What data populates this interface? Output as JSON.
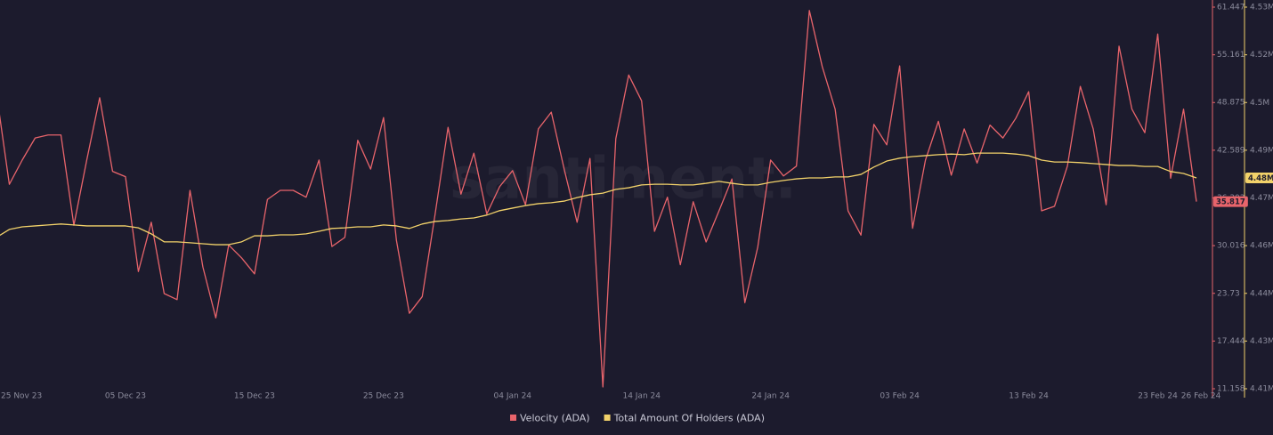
{
  "chart_data": {
    "type": "line",
    "watermark": "santiment.",
    "categories": [
      "25 Nov 23",
      null,
      null,
      null,
      null,
      null,
      null,
      null,
      null,
      null,
      "05 Dec 23",
      null,
      null,
      null,
      null,
      null,
      null,
      null,
      null,
      null,
      "15 Dec 23",
      null,
      null,
      null,
      null,
      null,
      null,
      null,
      null,
      null,
      "25 Dec 23",
      null,
      null,
      null,
      null,
      null,
      null,
      null,
      null,
      null,
      "04 Jan 24",
      null,
      null,
      null,
      null,
      null,
      null,
      null,
      null,
      null,
      "14 Jan 24",
      null,
      null,
      null,
      null,
      null,
      null,
      null,
      null,
      null,
      "24 Jan 24",
      null,
      null,
      null,
      null,
      null,
      null,
      null,
      null,
      null,
      "03 Feb 24",
      null,
      null,
      null,
      null,
      null,
      null,
      null,
      null,
      null,
      "13 Feb 24",
      null,
      null,
      null,
      null,
      null,
      null,
      null,
      null,
      null,
      "23 Feb 24",
      null,
      null,
      "26 Feb 24"
    ],
    "ylim": [
      11.158,
      61.447
    ],
    "yticks": [
      61.447,
      55.161,
      48.875,
      42.589,
      36.303,
      30.016,
      23.73,
      17.444,
      11.158
    ],
    "y2lim": [
      4410000,
      4530000
    ],
    "y2ticks": [
      {
        "value": 4530000,
        "label": "4.53M"
      },
      {
        "value": 4515000,
        "label": "4.52M"
      },
      {
        "value": 4500000,
        "label": "4.5M"
      },
      {
        "value": 4485000,
        "label": "4.49M"
      },
      {
        "value": 4470000,
        "label": "4.47M"
      },
      {
        "value": 4455000,
        "label": "4.46M"
      },
      {
        "value": 4440000,
        "label": "4.44M"
      },
      {
        "value": 4425000,
        "label": "4.43M"
      },
      {
        "value": 4410000,
        "label": "4.41M"
      }
    ],
    "grid": false,
    "legend": "bottom",
    "series": [
      {
        "name": "Velocity (ADA)",
        "color": "#e8646b",
        "axis": "y",
        "values": [
          50.1,
          38.1,
          41.3,
          44.2,
          44.6,
          44.6,
          32.7,
          41.3,
          49.5,
          39.8,
          39.1,
          26.6,
          33.1,
          23.7,
          22.9,
          37.3,
          27.2,
          20.5,
          30.1,
          28.4,
          26.3,
          36.1,
          37.3,
          37.3,
          36.4,
          41.3,
          29.9,
          31.1,
          43.9,
          40.1,
          46.9,
          30.7,
          21.1,
          23.3,
          34.2,
          45.6,
          36.8,
          42.2,
          34.2,
          37.8,
          39.9,
          35.4,
          45.4,
          47.6,
          40.1,
          33.1,
          41.5,
          11.4,
          44.1,
          52.5,
          49.1,
          31.9,
          36.4,
          27.5,
          35.8,
          30.5,
          34.6,
          38.8,
          22.5,
          29.8,
          41.3,
          39.2,
          40.5,
          61.0,
          53.6,
          48.0,
          34.6,
          31.4,
          46.0,
          43.3,
          53.7,
          32.3,
          41.3,
          46.4,
          39.3,
          45.4,
          40.9,
          45.9,
          44.2,
          46.8,
          50.3,
          34.6,
          35.2,
          40.5,
          51.0,
          45.4,
          35.4,
          56.3,
          48.0,
          44.9,
          57.9,
          38.9,
          48.0,
          35.817
        ]
      },
      {
        "name": "Total Amount Of Holders (ADA)",
        "color": "#f2d26a",
        "axis": "y2",
        "values": [
          4457600,
          4460100,
          4460900,
          4461200,
          4461500,
          4461800,
          4461500,
          4461200,
          4461200,
          4461200,
          4461200,
          4460600,
          4458700,
          4456200,
          4456200,
          4455900,
          4455600,
          4455300,
          4455300,
          4456200,
          4458100,
          4458100,
          4458400,
          4458400,
          4458700,
          4459500,
          4460400,
          4460600,
          4460900,
          4460900,
          4461500,
          4461200,
          4460400,
          4461800,
          4462600,
          4462900,
          4463400,
          4463700,
          4464600,
          4466000,
          4466800,
          4467600,
          4468200,
          4468500,
          4469000,
          4470100,
          4471000,
          4471500,
          4472700,
          4473200,
          4474100,
          4474300,
          4474300,
          4474100,
          4474100,
          4474600,
          4475200,
          4474600,
          4474100,
          4474100,
          4474900,
          4475500,
          4476000,
          4476300,
          4476300,
          4476600,
          4476600,
          4477400,
          4479700,
          4481600,
          4482500,
          4483000,
          4483300,
          4483600,
          4483800,
          4483600,
          4484100,
          4484100,
          4484100,
          4483800,
          4483300,
          4481900,
          4481300,
          4481300,
          4481100,
          4480800,
          4480500,
          4480200,
          4480200,
          4479900,
          4479900,
          4478300,
          4477700,
          4476300
        ],
        "value_labels": [
          null,
          null,
          null,
          null,
          null,
          null,
          null,
          null,
          null,
          null,
          null,
          null,
          null,
          null,
          null,
          null,
          null,
          null,
          null,
          null,
          null,
          null,
          null,
          null,
          null,
          null,
          null,
          null,
          null,
          null,
          null,
          null,
          null,
          null,
          null,
          null,
          null,
          null,
          null,
          null,
          null,
          null,
          null,
          null,
          null,
          null,
          null,
          null,
          null,
          null,
          null,
          null,
          null,
          null,
          null,
          null,
          null,
          null,
          null,
          null,
          null,
          null,
          null,
          null,
          null,
          null,
          null,
          null,
          null,
          null,
          null,
          null,
          null,
          null,
          null,
          null,
          null,
          null,
          null,
          null,
          null,
          null,
          null,
          null,
          null,
          null,
          null,
          null,
          null,
          null,
          null,
          null,
          null,
          "4.48M"
        ]
      }
    ]
  }
}
